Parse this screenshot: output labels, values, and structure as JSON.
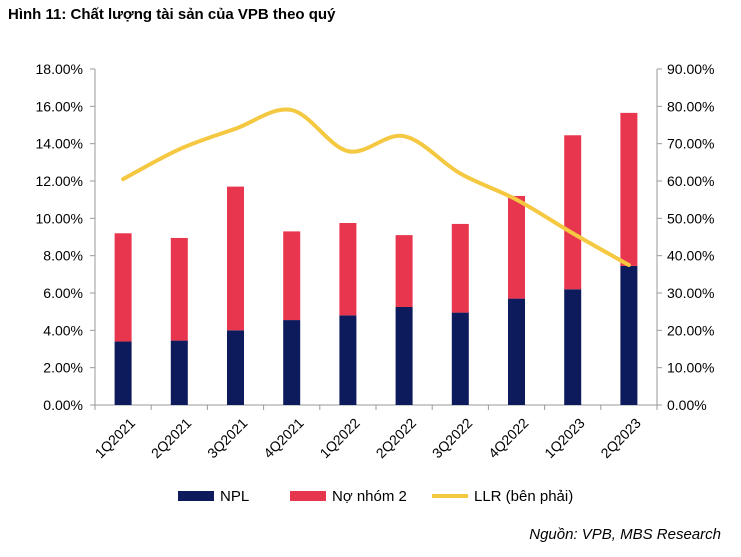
{
  "title": "Hình 11: Chất lượng tài sản của VPB theo quý",
  "source": "Nguồn: VPB, MBS Research",
  "chart_data": {
    "type": "bar",
    "stacked": true,
    "categories": [
      "1Q2021",
      "2Q2021",
      "3Q2021",
      "4Q2021",
      "1Q2022",
      "2Q2022",
      "3Q2022",
      "4Q2022",
      "1Q2023",
      "2Q2023"
    ],
    "series": [
      {
        "name": "NPL",
        "type": "bar",
        "axis": "left",
        "color": "#0d1a5c",
        "values": [
          3.4,
          3.45,
          4.0,
          4.55,
          4.8,
          5.25,
          4.95,
          5.7,
          6.2,
          7.45
        ]
      },
      {
        "name": "Nợ nhóm 2",
        "type": "bar",
        "axis": "left",
        "color": "#e8364f",
        "values": [
          5.8,
          5.5,
          7.7,
          4.75,
          4.95,
          3.85,
          4.75,
          5.5,
          8.25,
          8.2
        ]
      },
      {
        "name": "LLR (bên phải)",
        "type": "line",
        "axis": "right",
        "color": "#f5c842",
        "values": [
          60.5,
          68.5,
          74,
          79,
          68,
          72,
          62,
          55,
          46,
          37.5
        ]
      }
    ],
    "y_left": {
      "min": 0,
      "max": 18,
      "step": 2,
      "tick_labels": [
        "0.00%",
        "2.00%",
        "4.00%",
        "6.00%",
        "8.00%",
        "10.00%",
        "12.00%",
        "14.00%",
        "16.00%",
        "18.00%"
      ]
    },
    "y_right": {
      "min": 0,
      "max": 90,
      "step": 10,
      "tick_labels": [
        "0.00%",
        "10.00%",
        "20.00%",
        "30.00%",
        "40.00%",
        "50.00%",
        "60.00%",
        "70.00%",
        "80.00%",
        "90.00%"
      ]
    },
    "grid": false,
    "legend_position": "bottom"
  }
}
